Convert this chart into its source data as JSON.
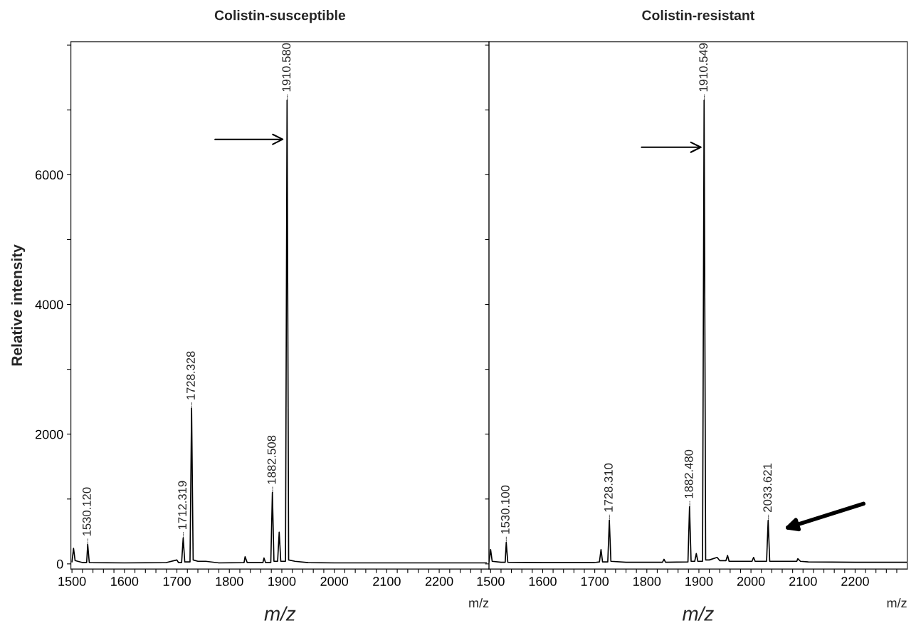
{
  "chart_data": [
    {
      "type": "line",
      "title": "Colistin-susceptible",
      "xlabel": "m/z",
      "ylabel": "Relative intensity",
      "series": [
        {
          "color": "#000000",
          "x": [
            1500,
            1503,
            1506,
            1520,
            1528,
            1530,
            1533,
            1600,
            1680,
            1700,
            1703,
            1709,
            1712,
            1715,
            1725,
            1728,
            1731,
            1740,
            1755,
            1780,
            1828,
            1830,
            1834,
            1864,
            1866,
            1869,
            1879,
            1882,
            1885,
            1892,
            1895,
            1898,
            1907,
            1910,
            1913,
            1925,
            1950,
            2000,
            2100,
            2200,
            2290
          ],
          "values": [
            30,
            240,
            50,
            20,
            20,
            300,
            20,
            15,
            20,
            60,
            20,
            20,
            400,
            30,
            30,
            2400,
            60,
            40,
            40,
            15,
            20,
            110,
            20,
            20,
            90,
            20,
            20,
            1100,
            40,
            40,
            490,
            40,
            40,
            7150,
            60,
            40,
            20,
            15,
            15,
            15,
            15
          ]
        }
      ],
      "annotations": [
        {
          "text": "1530.120",
          "x": 1530.12,
          "y": 300
        },
        {
          "text": "1712.319",
          "x": 1712.319,
          "y": 400
        },
        {
          "text": "1728.328",
          "x": 1728.328,
          "y": 2400
        },
        {
          "text": "1882.508",
          "x": 1882.508,
          "y": 1100
        },
        {
          "text": "1910.580",
          "x": 1910.58,
          "y": 7150
        },
        "m/z"
      ],
      "xlim": [
        1498,
        2295
      ],
      "ylim": [
        -80,
        8050
      ],
      "xticks": [
        1500,
        {
          "value": 1520,
          "label": null
        },
        {
          "value": 1540,
          "label": null
        },
        {
          "value": 1560,
          "label": null
        },
        {
          "value": 1580,
          "label": null
        },
        1600,
        {
          "value": 1620,
          "label": null
        },
        {
          "value": 1640,
          "label": null
        },
        {
          "value": 1660,
          "label": null
        },
        {
          "value": 1680,
          "label": null
        },
        1700,
        {
          "value": 1720,
          "label": null
        },
        {
          "value": 1740,
          "label": null
        },
        {
          "value": 1760,
          "label": null
        },
        {
          "value": 1780,
          "label": null
        },
        1800,
        {
          "value": 1820,
          "label": null
        },
        {
          "value": 1840,
          "label": null
        },
        {
          "value": 1860,
          "label": null
        },
        {
          "value": 1880,
          "label": null
        },
        1900,
        {
          "value": 1920,
          "label": null
        },
        {
          "value": 1940,
          "label": null
        },
        {
          "value": 1960,
          "label": null
        },
        {
          "value": 1980,
          "label": null
        },
        2000,
        {
          "value": 2020,
          "label": null
        },
        {
          "value": 2040,
          "label": null
        },
        {
          "value": 2060,
          "label": null
        },
        {
          "value": 2080,
          "label": null
        },
        2100,
        {
          "value": 2120,
          "label": null
        },
        {
          "value": 2140,
          "label": null
        },
        {
          "value": 2160,
          "label": null
        },
        {
          "value": 2180,
          "label": null
        },
        2200,
        {
          "value": 2220,
          "label": null
        },
        {
          "value": 2240,
          "label": null
        },
        {
          "value": 2260,
          "label": null
        },
        {
          "value": 2280,
          "label": null
        }
      ],
      "yticks": [
        0,
        {
          "value": 1000,
          "label": null
        },
        2000,
        {
          "value": 3000,
          "label": null
        },
        4000,
        {
          "value": 5000,
          "label": null
        },
        6000,
        {
          "value": 7000,
          "label": null
        },
        {
          "value": 8000,
          "label": null
        }
      ],
      "grid": false,
      "legend": false
    },
    {
      "type": "line",
      "title": "Colistin-resistant",
      "xlabel": "m/z",
      "series": [
        {
          "color": "#000000",
          "x": [
            1497,
            1500,
            1503,
            1520,
            1528,
            1530,
            1533,
            1600,
            1700,
            1709,
            1712,
            1715,
            1725,
            1728,
            1731,
            1760,
            1830,
            1833,
            1836,
            1879,
            1882,
            1885,
            1892,
            1895,
            1898,
            1907,
            1910,
            1913,
            1920,
            1935,
            1940,
            1952,
            1955,
            1958,
            1975,
            2002,
            2005,
            2008,
            2030,
            2033,
            2036,
            2050,
            2088,
            2090,
            2095,
            2110,
            2200,
            2300
          ],
          "values": [
            30,
            220,
            40,
            25,
            25,
            330,
            25,
            20,
            20,
            30,
            220,
            30,
            30,
            670,
            40,
            25,
            25,
            70,
            25,
            30,
            880,
            40,
            40,
            160,
            40,
            40,
            7150,
            60,
            60,
            100,
            50,
            50,
            130,
            40,
            40,
            40,
            100,
            40,
            40,
            670,
            40,
            40,
            40,
            80,
            40,
            30,
            25,
            25
          ]
        }
      ],
      "annotations": [
        {
          "text": "1530.100",
          "x": 1530.1,
          "y": 330
        },
        {
          "text": "1728.310",
          "x": 1728.31,
          "y": 670
        },
        {
          "text": "1882.480",
          "x": 1882.48,
          "y": 880
        },
        {
          "text": "1910.549",
          "x": 1910.549,
          "y": 7150
        },
        {
          "text": "2033.621",
          "x": 2033.621,
          "y": 670
        },
        "m/z"
      ],
      "xlim": [
        1497,
        2300
      ],
      "ylim": [
        -80,
        8050
      ],
      "xticks": [
        1500,
        {
          "value": 1520,
          "label": null
        },
        {
          "value": 1540,
          "label": null
        },
        {
          "value": 1560,
          "label": null
        },
        {
          "value": 1580,
          "label": null
        },
        1600,
        {
          "value": 1620,
          "label": null
        },
        {
          "value": 1640,
          "label": null
        },
        {
          "value": 1660,
          "label": null
        },
        {
          "value": 1680,
          "label": null
        },
        1700,
        {
          "value": 1720,
          "label": null
        },
        {
          "value": 1740,
          "label": null
        },
        {
          "value": 1760,
          "label": null
        },
        {
          "value": 1780,
          "label": null
        },
        1800,
        {
          "value": 1820,
          "label": null
        },
        {
          "value": 1840,
          "label": null
        },
        {
          "value": 1860,
          "label": null
        },
        {
          "value": 1880,
          "label": null
        },
        1900,
        {
          "value": 1920,
          "label": null
        },
        {
          "value": 1940,
          "label": null
        },
        {
          "value": 1960,
          "label": null
        },
        {
          "value": 1980,
          "label": null
        },
        2000,
        {
          "value": 2020,
          "label": null
        },
        {
          "value": 2040,
          "label": null
        },
        {
          "value": 2060,
          "label": null
        },
        {
          "value": 2080,
          "label": null
        },
        2100,
        {
          "value": 2120,
          "label": null
        },
        {
          "value": 2140,
          "label": null
        },
        {
          "value": 2160,
          "label": null
        },
        {
          "value": 2180,
          "label": null
        },
        2200,
        {
          "value": 2220,
          "label": null
        },
        {
          "value": 2240,
          "label": null
        },
        {
          "value": 2260,
          "label": null
        },
        {
          "value": 2280,
          "label": null
        }
      ],
      "yticks": [
        0,
        {
          "value": 1000,
          "label": null
        },
        2000,
        {
          "value": 3000,
          "label": null
        },
        4000,
        {
          "value": 5000,
          "label": null
        },
        6000,
        {
          "value": 7000,
          "label": null
        },
        {
          "value": 8000,
          "label": null
        }
      ],
      "tick_labels": "x",
      "grid": false,
      "legend": false
    }
  ]
}
